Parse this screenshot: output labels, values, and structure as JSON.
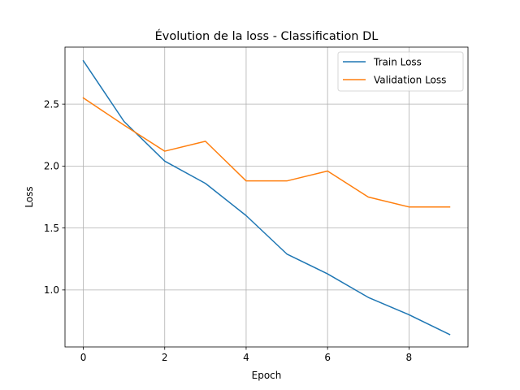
{
  "chart_data": {
    "type": "line",
    "title": "Évolution de la loss - Classification DL",
    "xlabel": "Epoch",
    "ylabel": "Loss",
    "x": [
      0,
      1,
      2,
      3,
      4,
      5,
      6,
      7,
      8,
      9
    ],
    "xlim": [
      -0.45,
      9.45
    ],
    "ylim": [
      0.54,
      2.96
    ],
    "xticks": [
      0,
      2,
      4,
      6,
      8
    ],
    "yticks": [
      1.0,
      1.5,
      2.0,
      2.5
    ],
    "xtick_labels": [
      "0",
      "2",
      "4",
      "6",
      "8"
    ],
    "ytick_labels": [
      "1.0",
      "1.5",
      "2.0",
      "2.5"
    ],
    "grid": true,
    "legend_position": "top-right",
    "series": [
      {
        "name": "Train Loss",
        "color": "#1f77b4",
        "values": [
          2.85,
          2.36,
          2.04,
          1.86,
          1.6,
          1.29,
          1.13,
          0.94,
          0.8,
          0.64
        ]
      },
      {
        "name": "Validation Loss",
        "color": "#ff7f0e",
        "values": [
          2.55,
          2.33,
          2.12,
          2.2,
          1.88,
          1.88,
          1.96,
          1.75,
          1.67,
          1.67
        ]
      }
    ]
  }
}
